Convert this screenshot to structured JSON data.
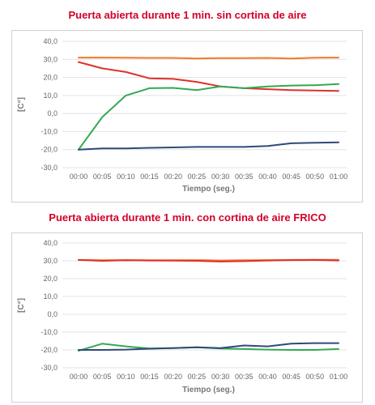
{
  "chart_data": [
    {
      "type": "line",
      "title": "Puerta abierta durante 1 min. sin cortina de aire",
      "xlabel": "Tiempo (seg.)",
      "ylabel": "[C°]",
      "categories": [
        "00:00",
        "00:05",
        "00:10",
        "00:15",
        "00:20",
        "00:25",
        "00:30",
        "00:35",
        "00:40",
        "00:45",
        "00:50",
        "01:00"
      ],
      "ylim": [
        -30,
        40
      ],
      "yticks": [
        "40,0",
        "30,0",
        "20,0",
        "10,0",
        "0,0",
        "-10,0",
        "-20,0",
        "-30,0"
      ],
      "grid": true,
      "series": [
        {
          "color": "#f07a2a",
          "values": [
            31.0,
            31.0,
            30.9,
            30.8,
            30.8,
            30.5,
            30.7,
            30.7,
            30.8,
            30.5,
            30.9,
            31.0
          ]
        },
        {
          "color": "#e0302a",
          "values": [
            28.5,
            25.0,
            23.0,
            19.5,
            19.2,
            17.5,
            15.0,
            14.0,
            13.5,
            13.0,
            12.7,
            12.5
          ]
        },
        {
          "color": "#34a853",
          "values": [
            -20.0,
            -2.0,
            10.0,
            14.0,
            14.2,
            13.0,
            15.0,
            14.0,
            15.0,
            15.5,
            15.7,
            16.3
          ]
        },
        {
          "color": "#2e4a78",
          "values": [
            -20.0,
            -19.3,
            -19.3,
            -19.0,
            -18.8,
            -18.5,
            -18.5,
            -18.5,
            -18.0,
            -16.5,
            -16.2,
            -16.0
          ]
        }
      ]
    },
    {
      "type": "line",
      "title": "Puerta abierta durante 1 min. con cortina de aire FRICO",
      "xlabel": "Tiempo (seg.)",
      "ylabel": "[C°]",
      "categories": [
        "00:00",
        "00:05",
        "00:10",
        "00:15",
        "00:20",
        "00:25",
        "00:30",
        "00:35",
        "00:40",
        "00:45",
        "00:50",
        "01:00"
      ],
      "ylim": [
        -30,
        40
      ],
      "yticks": [
        "40,0",
        "30,0",
        "20,0",
        "10,0",
        "0,0",
        "-10,0",
        "-20,0",
        "-30,0"
      ],
      "grid": true,
      "series": [
        {
          "color": "#f07a2a",
          "values": [
            30.5,
            30.3,
            30.4,
            30.3,
            30.3,
            30.4,
            30.2,
            30.3,
            30.4,
            30.5,
            30.6,
            30.6
          ]
        },
        {
          "color": "#e0302a",
          "values": [
            30.5,
            30.0,
            30.3,
            30.2,
            30.1,
            30.0,
            29.6,
            29.8,
            30.2,
            30.4,
            30.5,
            30.2
          ]
        },
        {
          "color": "#34a853",
          "values": [
            -20.5,
            -16.5,
            -18.0,
            -19.2,
            -19.0,
            -18.5,
            -19.2,
            -19.5,
            -19.8,
            -20.0,
            -20.0,
            -19.5
          ]
        },
        {
          "color": "#2e4a78",
          "values": [
            -20.0,
            -20.0,
            -19.8,
            -19.3,
            -19.0,
            -18.5,
            -19.0,
            -17.5,
            -18.0,
            -16.5,
            -16.2,
            -16.2
          ]
        }
      ]
    }
  ]
}
